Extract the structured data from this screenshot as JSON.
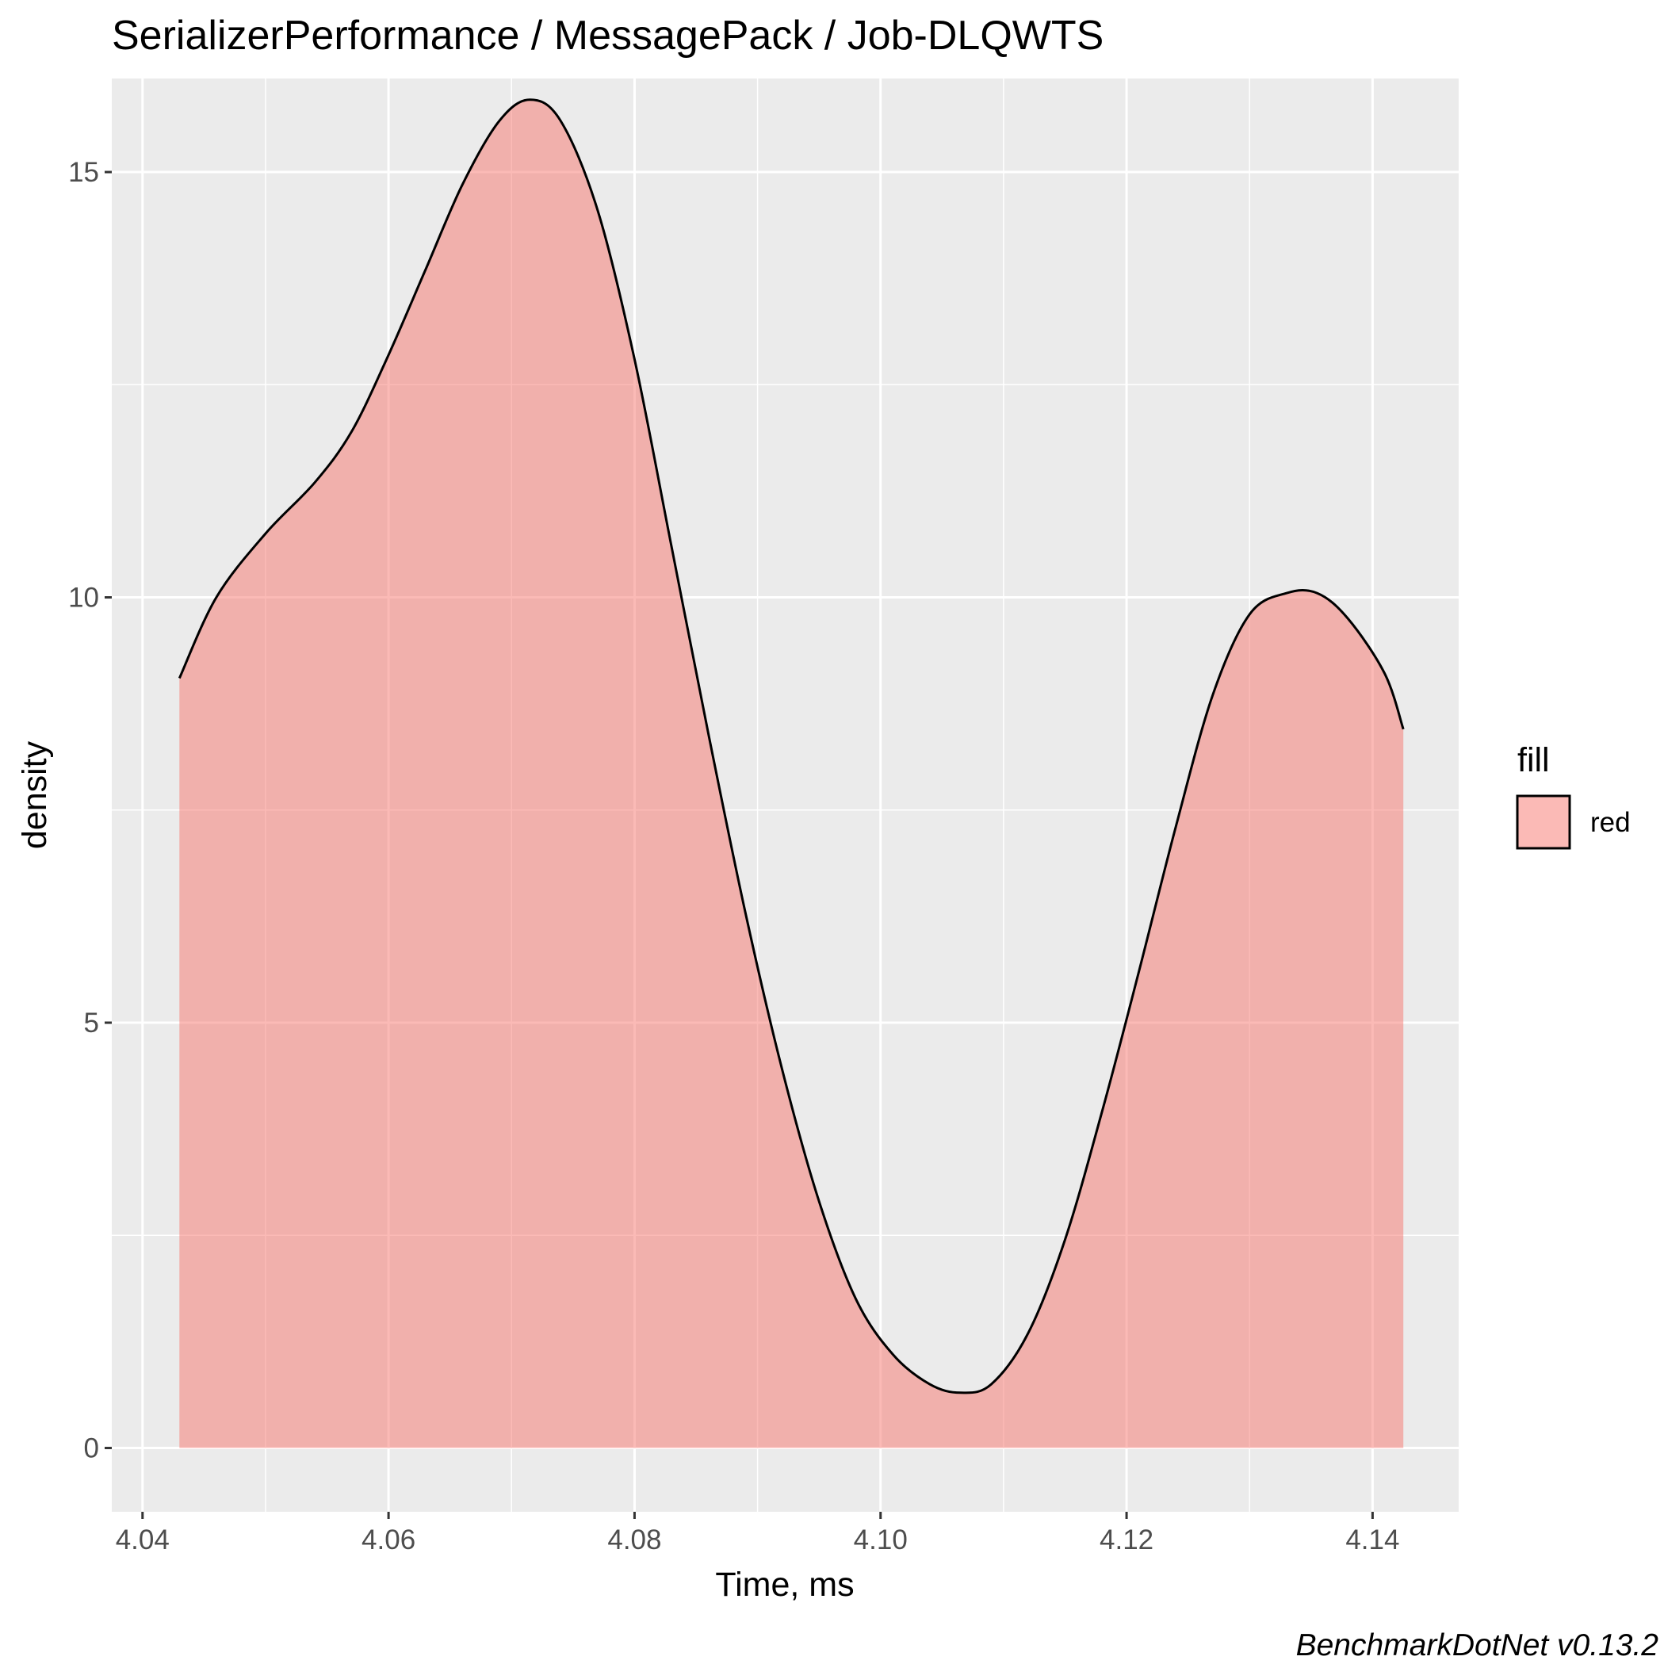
{
  "chart_data": {
    "type": "area",
    "title": "SerializerPerformance / MessagePack / Job-DLQWTS",
    "xlabel": "Time, ms",
    "ylabel": "density",
    "caption": "BenchmarkDotNet v0.13.2",
    "xlim": [
      4.0375,
      4.147
    ],
    "ylim": [
      -0.75,
      16.1
    ],
    "x_ticks": [
      4.04,
      4.06,
      4.08,
      4.1,
      4.12,
      4.14
    ],
    "x_tick_labels": [
      "4.04",
      "4.06",
      "4.08",
      "4.10",
      "4.12",
      "4.14"
    ],
    "y_ticks": [
      0,
      5,
      10,
      15
    ],
    "y_tick_labels": [
      "0",
      "5",
      "10",
      "15"
    ],
    "grid": true,
    "legend": {
      "title": "fill",
      "position": "right",
      "entries": [
        {
          "label": "red",
          "color": "#F8766D"
        }
      ]
    },
    "series": [
      {
        "fill_color": "#F8766D",
        "fill_opacity": 0.5,
        "line_color": "#000000",
        "x": [
          4.043,
          4.046,
          4.05,
          4.054,
          4.057,
          4.06,
          4.063,
          4.066,
          4.069,
          4.0715,
          4.074,
          4.077,
          4.08,
          4.083,
          4.086,
          4.089,
          4.092,
          4.095,
          4.098,
          4.101,
          4.104,
          4.1065,
          4.109,
          4.112,
          4.115,
          4.118,
          4.121,
          4.124,
          4.127,
          4.13,
          4.133,
          4.1355,
          4.138,
          4.141,
          4.1425
        ],
        "y": [
          9.05,
          10.0,
          10.75,
          11.35,
          11.95,
          12.85,
          13.85,
          14.85,
          15.6,
          15.85,
          15.6,
          14.55,
          12.8,
          10.6,
          8.4,
          6.3,
          4.45,
          2.9,
          1.75,
          1.1,
          0.75,
          0.65,
          0.75,
          1.35,
          2.45,
          3.95,
          5.6,
          7.3,
          8.85,
          9.8,
          10.05,
          10.05,
          9.75,
          9.1,
          8.45
        ]
      }
    ]
  }
}
